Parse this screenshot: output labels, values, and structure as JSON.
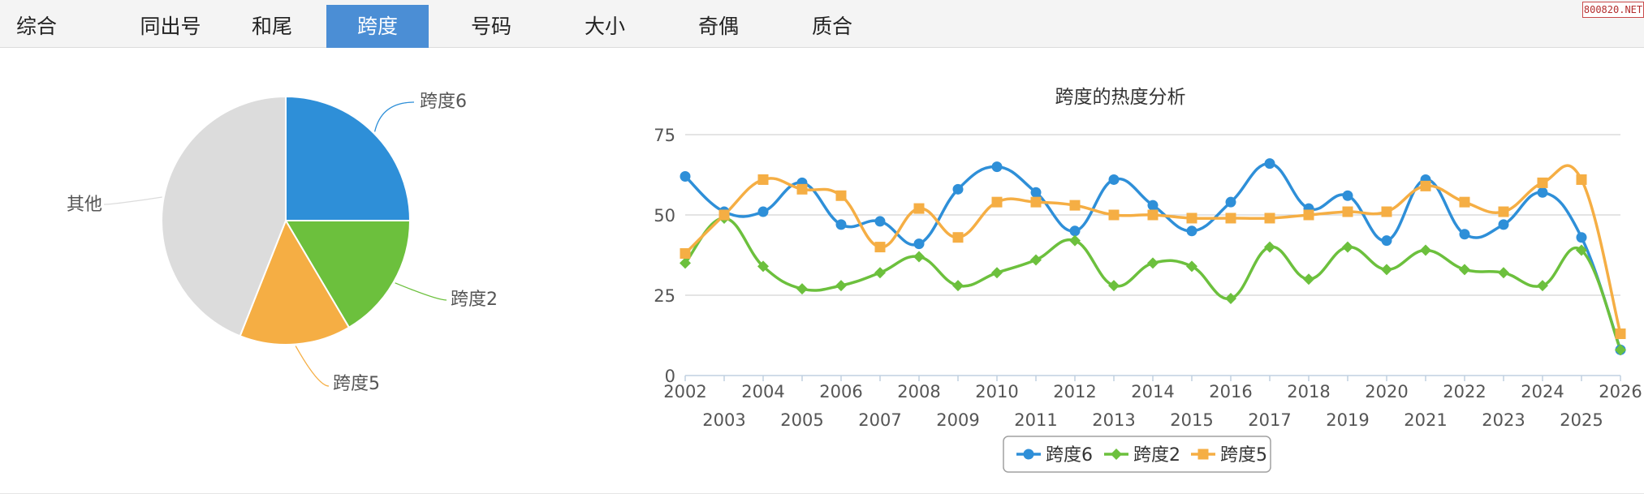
{
  "tabs": [
    {
      "label": "综合",
      "active": false
    },
    {
      "label": "同出号",
      "active": false
    },
    {
      "label": "和尾",
      "active": false
    },
    {
      "label": "跨度",
      "active": true
    },
    {
      "label": "号码",
      "active": false
    },
    {
      "label": "大小",
      "active": false
    },
    {
      "label": "奇偶",
      "active": false
    },
    {
      "label": "质合",
      "active": false
    }
  ],
  "watermark": "800820.NET",
  "chart_data": [
    {
      "type": "pie",
      "slices": [
        {
          "label": "跨度6",
          "value": 25,
          "color": "#2e8fd8"
        },
        {
          "label": "跨度2",
          "value": 16.5,
          "color": "#6cc03d"
        },
        {
          "label": "跨度5",
          "value": 14.5,
          "color": "#f5ae44"
        },
        {
          "label": "其他",
          "value": 44,
          "color": "#dcdcdc"
        }
      ]
    },
    {
      "type": "line",
      "title": "跨度的热度分析",
      "categories": [
        "2002",
        "2003",
        "2004",
        "2005",
        "2006",
        "2007",
        "2008",
        "2009",
        "2010",
        "2011",
        "2012",
        "2013",
        "2014",
        "2015",
        "2016",
        "2017",
        "2018",
        "2019",
        "2020",
        "2021",
        "2022",
        "2023",
        "2024",
        "2025",
        "2026"
      ],
      "ylim": [
        0,
        75
      ],
      "yticks": [
        0,
        25,
        50,
        75
      ],
      "grid": true,
      "legend": "bottom-center",
      "series": [
        {
          "name": "跨度6",
          "color": "#2e8fd8",
          "marker": "circle",
          "values": [
            62,
            51,
            51,
            60,
            47,
            48,
            41,
            58,
            65,
            57,
            45,
            61,
            53,
            45,
            54,
            66,
            52,
            56,
            42,
            61,
            44,
            47,
            57,
            43,
            8
          ]
        },
        {
          "name": "跨度2",
          "color": "#6cc03d",
          "marker": "diamond",
          "values": [
            35,
            49,
            34,
            27,
            28,
            32,
            37,
            28,
            32,
            36,
            42,
            28,
            35,
            34,
            24,
            40,
            30,
            40,
            33,
            39,
            33,
            32,
            28,
            39,
            8
          ]
        },
        {
          "name": "跨度5",
          "color": "#f5ae44",
          "marker": "square",
          "values": [
            38,
            50,
            61,
            58,
            56,
            40,
            52,
            43,
            54,
            54,
            53,
            50,
            50,
            49,
            49,
            49,
            50,
            51,
            51,
            59,
            54,
            51,
            60,
            61,
            13
          ]
        }
      ]
    }
  ]
}
